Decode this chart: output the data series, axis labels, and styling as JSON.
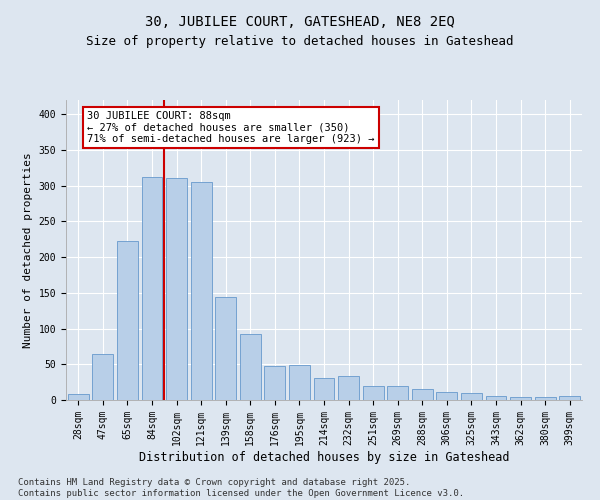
{
  "title": "30, JUBILEE COURT, GATESHEAD, NE8 2EQ",
  "subtitle": "Size of property relative to detached houses in Gateshead",
  "xlabel": "Distribution of detached houses by size in Gateshead",
  "ylabel": "Number of detached properties",
  "categories": [
    "28sqm",
    "47sqm",
    "65sqm",
    "84sqm",
    "102sqm",
    "121sqm",
    "139sqm",
    "158sqm",
    "176sqm",
    "195sqm",
    "214sqm",
    "232sqm",
    "251sqm",
    "269sqm",
    "288sqm",
    "306sqm",
    "325sqm",
    "343sqm",
    "362sqm",
    "380sqm",
    "399sqm"
  ],
  "bar_values": [
    8,
    65,
    222,
    312,
    311,
    305,
    144,
    93,
    48,
    49,
    31,
    33,
    20,
    19,
    15,
    11,
    10,
    5,
    4,
    4,
    5
  ],
  "bar_color": "#b8cfe8",
  "bar_edge_color": "#6699cc",
  "vline_x": 3.5,
  "vline_color": "#cc0000",
  "annotation_text": "30 JUBILEE COURT: 88sqm\n← 27% of detached houses are smaller (350)\n71% of semi-detached houses are larger (923) →",
  "annotation_box_color": "#ffffff",
  "annotation_box_edge": "#cc0000",
  "ylim": [
    0,
    420
  ],
  "yticks": [
    0,
    50,
    100,
    150,
    200,
    250,
    300,
    350,
    400
  ],
  "background_color": "#dde6f0",
  "plot_bg_color": "#dde6f0",
  "grid_color": "#ffffff",
  "footer_text": "Contains HM Land Registry data © Crown copyright and database right 2025.\nContains public sector information licensed under the Open Government Licence v3.0.",
  "title_fontsize": 10,
  "subtitle_fontsize": 9,
  "xlabel_fontsize": 8.5,
  "ylabel_fontsize": 8,
  "tick_fontsize": 7,
  "footer_fontsize": 6.5,
  "annotation_fontsize": 7.5
}
